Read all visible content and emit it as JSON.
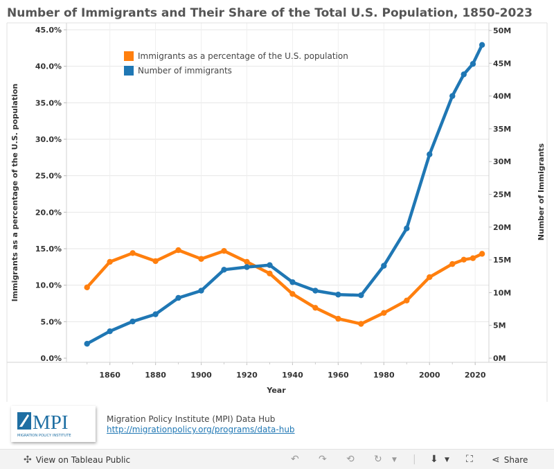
{
  "chart_data": {
    "type": "line",
    "title": "Number of Immigrants and Their Share of the Total U.S. Population, 1850-2023",
    "xlabel": "Year",
    "ylabel_left": "Immigrants as a percentage of the U.S. population",
    "ylabel_right": "Number of Immigrants",
    "x_ticks": [
      "1860",
      "1880",
      "1900",
      "1920",
      "1940",
      "1960",
      "1980",
      "2000",
      "2020"
    ],
    "x_tick_values": [
      1860,
      1880,
      1900,
      1920,
      1940,
      1960,
      1980,
      2000,
      2020
    ],
    "xlim": [
      1841,
      2026
    ],
    "y_left_ticks": [
      "0.0%",
      "5.0%",
      "10.0%",
      "15.0%",
      "20.0%",
      "25.0%",
      "30.0%",
      "35.0%",
      "40.0%",
      "45.0%"
    ],
    "y_left_lim": [
      0,
      45
    ],
    "y_right_ticks": [
      "0M",
      "5M",
      "10M",
      "15M",
      "20M",
      "25M",
      "30M",
      "35M",
      "40M",
      "45M",
      "50M"
    ],
    "y_right_lim": [
      0,
      50
    ],
    "legend": {
      "placement": "top-left",
      "entries": [
        "Immigrants as a percentage of the U.S. population",
        "Number of immigrants"
      ]
    },
    "x": [
      1850,
      1860,
      1870,
      1880,
      1890,
      1900,
      1910,
      1920,
      1930,
      1940,
      1950,
      1960,
      1970,
      1980,
      1990,
      2000,
      2010,
      2015,
      2019,
      2023
    ],
    "series": [
      {
        "name": "Immigrants as a percentage of the U.S. population",
        "axis": "left",
        "color": "#ff7f0e",
        "values": [
          9.7,
          13.2,
          14.4,
          13.3,
          14.8,
          13.6,
          14.7,
          13.2,
          11.6,
          8.8,
          6.9,
          5.4,
          4.7,
          6.2,
          7.9,
          11.1,
          12.9,
          13.5,
          13.7,
          14.3
        ]
      },
      {
        "name": "Number of immigrants",
        "axis": "right",
        "color": "#1f77b4",
        "values": [
          2.2,
          4.1,
          5.6,
          6.7,
          9.2,
          10.3,
          13.5,
          13.9,
          14.2,
          11.6,
          10.3,
          9.7,
          9.6,
          14.1,
          19.8,
          31.1,
          40.0,
          43.3,
          44.9,
          47.8
        ]
      }
    ],
    "grid": true
  },
  "source": {
    "logo_text": "MPI",
    "logo_subtext": "MIGRATION POLICY INSTITUTE",
    "line1": "Migration Policy Institute (MPI) Data Hub",
    "link": "http://migrationpolicy.org/programs/data-hub"
  },
  "toolbar": {
    "view_label": "View on Tableau Public",
    "share_label": "Share"
  },
  "colors": {
    "orange": "#ff7f0e",
    "blue": "#1f77b4",
    "grid": "#e6e6e6"
  }
}
